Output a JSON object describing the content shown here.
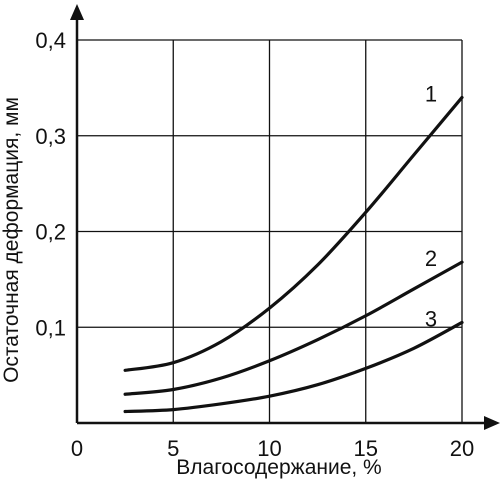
{
  "chart_data": {
    "type": "line",
    "xlabel": "Влагосодержание, %",
    "ylabel": "Остаточная деформация, мм",
    "xlim": [
      0,
      20
    ],
    "ylim": [
      0,
      0.4
    ],
    "x_ticks": [
      0,
      5,
      10,
      15,
      20
    ],
    "x_tick_labels": [
      "0",
      "5",
      "10",
      "15",
      "20"
    ],
    "y_ticks": [
      0.1,
      0.2,
      0.3,
      0.4
    ],
    "y_tick_labels": [
      "0,1",
      "0,2",
      "0,3",
      "0,4"
    ],
    "grid": true,
    "series": [
      {
        "name": "1",
        "x": [
          2.5,
          5,
          7.5,
          10,
          12.5,
          15,
          17.5,
          20
        ],
        "y": [
          0.055,
          0.063,
          0.085,
          0.12,
          0.165,
          0.22,
          0.28,
          0.34
        ]
      },
      {
        "name": "2",
        "x": [
          2.5,
          5,
          7.5,
          10,
          12.5,
          15,
          17.5,
          20
        ],
        "y": [
          0.03,
          0.035,
          0.047,
          0.065,
          0.087,
          0.112,
          0.14,
          0.168
        ]
      },
      {
        "name": "3",
        "x": [
          2.5,
          5,
          7.5,
          10,
          12.5,
          15,
          17.5,
          20
        ],
        "y": [
          0.012,
          0.014,
          0.02,
          0.028,
          0.04,
          0.057,
          0.078,
          0.105
        ]
      }
    ],
    "colors": {
      "line": "#111111",
      "grid": "#111111",
      "background": "#ffffff"
    }
  }
}
